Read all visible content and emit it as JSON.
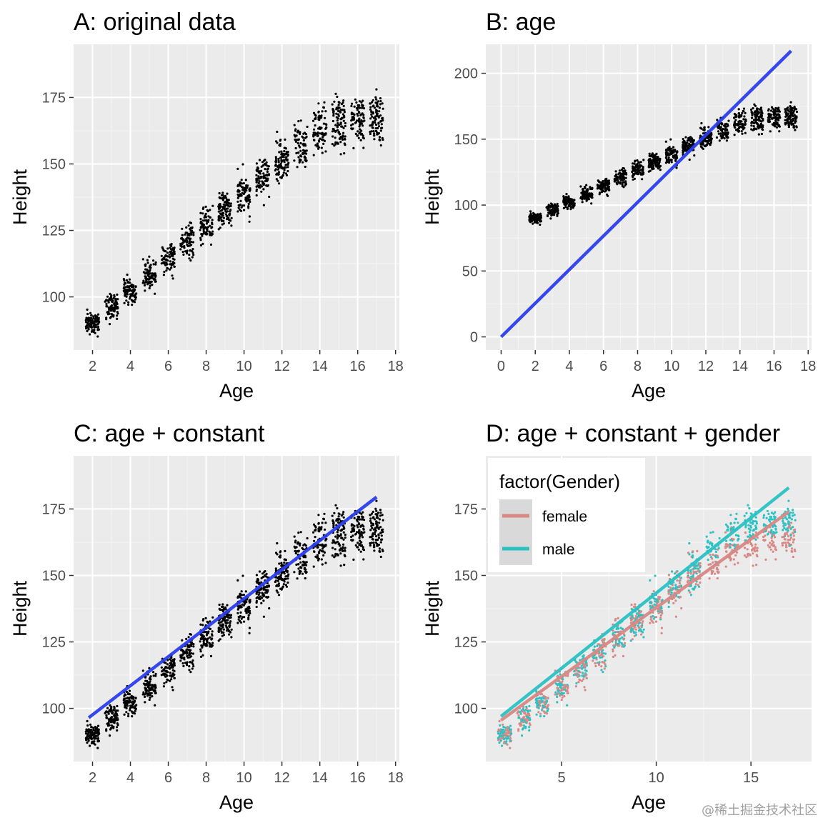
{
  "figure": {
    "watermark": "@稀土掘金技术社区"
  },
  "colors": {
    "panel_bg": "#ebebeb",
    "grid_major": "#ffffff",
    "points": "#000000",
    "fit_line": "#2b3ff0",
    "female": "#d98985",
    "male": "#2cc2c4",
    "axis_text": "#4d4d4d",
    "title_text": "#000000"
  },
  "chart_data": [
    {
      "id": "A",
      "type": "scatter",
      "title": "A: original data",
      "xlabel": "Age",
      "ylabel": "Height",
      "xlim": [
        1.0,
        18.2
      ],
      "ylim": [
        80,
        195
      ],
      "xticks": [
        2,
        4,
        6,
        8,
        10,
        12,
        14,
        16,
        18
      ],
      "yticks": [
        100,
        125,
        150,
        175
      ],
      "grid": true,
      "points": "simulated cloud (~1500 children): Age 1.5–17.3, Height ≈ 90 at age 2 rising to ≈ 168 at age 17, flattening after 14",
      "lines": []
    },
    {
      "id": "B",
      "type": "scatter",
      "title": "B: age",
      "xlabel": "Age",
      "ylabel": "Height",
      "xlim": [
        -0.9,
        18.2
      ],
      "ylim": [
        -10,
        222
      ],
      "xticks": [
        0,
        2,
        4,
        6,
        8,
        10,
        12,
        14,
        16,
        18
      ],
      "yticks": [
        0,
        50,
        100,
        150,
        200
      ],
      "grid": true,
      "points": "same data as A",
      "lines": [
        {
          "name": "fit: height ~ age (no intercept)",
          "color": "#2b3ff0",
          "x": [
            0,
            17
          ],
          "y": [
            0,
            217
          ]
        }
      ]
    },
    {
      "id": "C",
      "type": "scatter",
      "title": "C: age + constant",
      "xlabel": "Age",
      "ylabel": "Height",
      "xlim": [
        1.0,
        18.2
      ],
      "ylim": [
        80,
        195
      ],
      "xticks": [
        2,
        4,
        6,
        8,
        10,
        12,
        14,
        16,
        18
      ],
      "yticks": [
        100,
        125,
        150,
        175
      ],
      "grid": true,
      "points": "same data as A",
      "lines": [
        {
          "name": "fit: height ~ age + constant",
          "color": "#2b3ff0",
          "x": [
            1.8,
            17
          ],
          "y": [
            96.5,
            179.5
          ]
        }
      ]
    },
    {
      "id": "D",
      "type": "scatter",
      "title": "D: age + constant + gender",
      "xlabel": "Age",
      "ylabel": "Height",
      "xlim": [
        1.0,
        18.2
      ],
      "ylim": [
        80,
        195
      ],
      "xticks": [
        5,
        10,
        15
      ],
      "yticks": [
        100,
        125,
        150,
        175
      ],
      "grid": true,
      "points": "same data as A, coloured by gender (male slightly taller at older ages)",
      "legend": {
        "title": "factor(Gender)",
        "entries": [
          "female",
          "male"
        ],
        "placement": "top-left"
      },
      "lines": [
        {
          "name": "female",
          "color": "#d98985",
          "x": [
            1.8,
            17
          ],
          "y": [
            95.5,
            174
          ]
        },
        {
          "name": "male",
          "color": "#2cc2c4",
          "x": [
            1.8,
            17
          ],
          "y": [
            97,
            183
          ]
        }
      ]
    }
  ]
}
